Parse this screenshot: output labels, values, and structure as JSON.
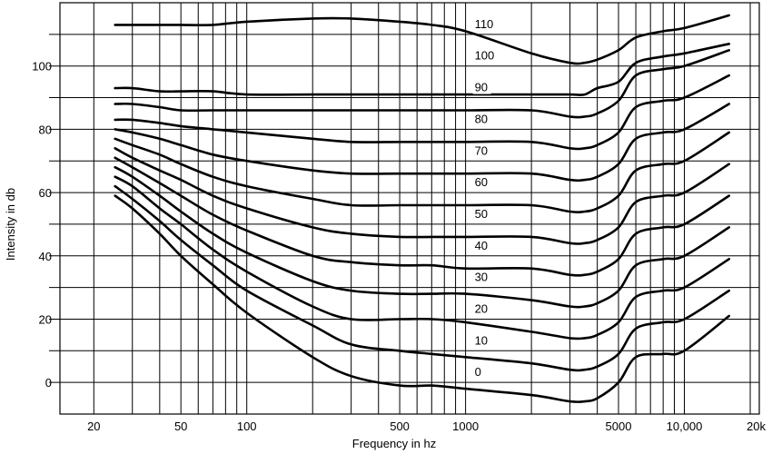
{
  "chart_data": {
    "type": "line",
    "title": "",
    "xlabel": "Frequency in hz",
    "ylabel": "Intensity in db",
    "x_scale": "log",
    "xlim": [
      14,
      22000
    ],
    "ylim": [
      -10,
      120
    ],
    "grid": true,
    "x_ticks": [
      {
        "value": 20,
        "label": "20"
      },
      {
        "value": 50,
        "label": "50"
      },
      {
        "value": 100,
        "label": "100"
      },
      {
        "value": 500,
        "label": "500"
      },
      {
        "value": 1000,
        "label": "1000"
      },
      {
        "value": 5000,
        "label": "5000"
      },
      {
        "value": 10000,
        "label": "10,000"
      },
      {
        "value": 20000,
        "label": "20k"
      }
    ],
    "x_gridlines": [
      20,
      30,
      40,
      50,
      60,
      70,
      80,
      90,
      100,
      200,
      300,
      400,
      500,
      600,
      700,
      800,
      900,
      1000,
      2000,
      3000,
      4000,
      5000,
      6000,
      7000,
      8000,
      9000,
      10000,
      20000
    ],
    "y_ticks": [
      {
        "value": 0,
        "label": "0"
      },
      {
        "value": 20,
        "label": "20"
      },
      {
        "value": 40,
        "label": "40"
      },
      {
        "value": 60,
        "label": "60"
      },
      {
        "value": 80,
        "label": "80"
      },
      {
        "value": 100,
        "label": "100"
      }
    ],
    "y_gridlines": [
      0,
      10,
      20,
      30,
      40,
      50,
      60,
      70,
      80,
      90,
      100,
      110
    ],
    "x": [
      25,
      30,
      40,
      50,
      70,
      100,
      200,
      300,
      500,
      700,
      1000,
      2000,
      3000,
      3500,
      4000,
      5000,
      6000,
      8000,
      10000,
      16000
    ],
    "series": [
      {
        "name": "0",
        "label_x": 1100,
        "label_y": 2,
        "values": [
          59,
          55,
          47,
          40,
          31,
          22,
          8,
          2,
          -1,
          -1,
          -2,
          -4,
          -6,
          -6,
          -5,
          0,
          8,
          9,
          10,
          21
        ]
      },
      {
        "name": "10",
        "label_x": 1100,
        "label_y": 12,
        "values": [
          62,
          58,
          51,
          45,
          37,
          29,
          18,
          12,
          10,
          9,
          8,
          6,
          4,
          4,
          5,
          9,
          17,
          19,
          20,
          29
        ]
      },
      {
        "name": "20",
        "label_x": 1100,
        "label_y": 22,
        "values": [
          65,
          62,
          55,
          50,
          42,
          35,
          24,
          20,
          20,
          20,
          19,
          16,
          14,
          14,
          15,
          19,
          27,
          29,
          30,
          39
        ]
      },
      {
        "name": "30",
        "label_x": 1100,
        "label_y": 32,
        "values": [
          68,
          65,
          59,
          54,
          47,
          41,
          32,
          29,
          28,
          28,
          28,
          26,
          24,
          24,
          25,
          29,
          37,
          39,
          40,
          49
        ]
      },
      {
        "name": "40",
        "label_x": 1100,
        "label_y": 42,
        "values": [
          71,
          68,
          63,
          59,
          53,
          48,
          40,
          38,
          37,
          37,
          36,
          36,
          34,
          34,
          35,
          39,
          47,
          49,
          50,
          59
        ]
      },
      {
        "name": "50",
        "label_x": 1100,
        "label_y": 52,
        "values": [
          74,
          71,
          67,
          64,
          59,
          55,
          49,
          47,
          46,
          46,
          46,
          46,
          44,
          44,
          45,
          49,
          57,
          59,
          60,
          69
        ]
      },
      {
        "name": "60",
        "label_x": 1100,
        "label_y": 62,
        "values": [
          77,
          75,
          72,
          69,
          65,
          62,
          58,
          56,
          56,
          56,
          56,
          56,
          54,
          54,
          55,
          59,
          67,
          69,
          70,
          79
        ]
      },
      {
        "name": "70",
        "label_x": 1100,
        "label_y": 72,
        "values": [
          80,
          79,
          77,
          75,
          72,
          70,
          67,
          66,
          66,
          66,
          66,
          66,
          64,
          64,
          65,
          69,
          77,
          79,
          80,
          88
        ]
      },
      {
        "name": "80",
        "label_x": 1100,
        "label_y": 82,
        "values": [
          83,
          83,
          82,
          81,
          80,
          79,
          77,
          76,
          76,
          76,
          76,
          76,
          74,
          74,
          75,
          79,
          87,
          89,
          90,
          97
        ]
      },
      {
        "name": "90",
        "label_x": 1100,
        "label_y": 92,
        "values": [
          88,
          88,
          87,
          86,
          86,
          86,
          86,
          86,
          86,
          86,
          86,
          86,
          84,
          84,
          85,
          89,
          97,
          99,
          100,
          105
        ]
      },
      {
        "name": "100",
        "label_x": 1100,
        "label_y": 102,
        "values": [
          93,
          93,
          92,
          92,
          92,
          91,
          91,
          91,
          91,
          91,
          91,
          91,
          91,
          91,
          93,
          95,
          101,
          103,
          104,
          107
        ]
      },
      {
        "name": "110",
        "label_x": 1100,
        "label_y": 112,
        "values": [
          113,
          113,
          113,
          113,
          113,
          114,
          115,
          115,
          114,
          113,
          111,
          104,
          101,
          101,
          102,
          105,
          109,
          111,
          112,
          116
        ]
      }
    ]
  }
}
